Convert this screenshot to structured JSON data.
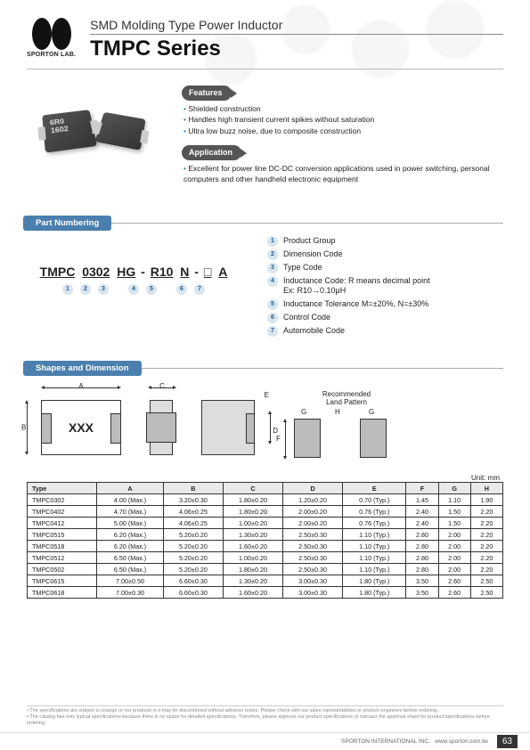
{
  "brand": "SPORTON LAB.",
  "header": {
    "sub": "SMD Molding Type Power Inductor",
    "title": "TMPC Series"
  },
  "product_marking": "6R0\\A1602",
  "features": {
    "label": "Features",
    "items": [
      "Shielded construction",
      "Handles high transient current spikes without saturation",
      "Ultra low buzz noise, due to composite construction"
    ]
  },
  "application": {
    "label": "Application",
    "items": [
      "Excellent for power line DC-DC conversion applications used in power switching, personal computers and other handheld electronic equipment"
    ]
  },
  "part_numbering": {
    "label": "Part Numbering",
    "parts": [
      "TMPC",
      "0302",
      "HG",
      "-",
      "R10",
      "N",
      "-",
      "□",
      "A"
    ],
    "legend": [
      {
        "n": "1",
        "t": "Product Group"
      },
      {
        "n": "2",
        "t": "Dimension Code"
      },
      {
        "n": "3",
        "t": "Type Code"
      },
      {
        "n": "4",
        "t": "Inductance Code: R means decimal point\n        Ex: R10→0.10μH"
      },
      {
        "n": "5",
        "t": "Inductance Tolerance M=±20%, N=±30%"
      },
      {
        "n": "6",
        "t": "Control Code"
      },
      {
        "n": "7",
        "t": "Automobile Code"
      }
    ]
  },
  "shapes": {
    "label": "Shapes and Dimension",
    "marking": "XXX",
    "land_pattern": "Recommended\nLand Pattern",
    "unit": "Unit: mm",
    "headers": [
      "Type",
      "A",
      "B",
      "C",
      "D",
      "E",
      "F",
      "G",
      "H"
    ],
    "rows": [
      [
        "TMPC0302",
        "4.00 (Max.)",
        "3.20±0.30",
        "1.80±0.20",
        "1.20±0.20",
        "0.70 (Typ.)",
        "1.45",
        "1.10",
        "1.90"
      ],
      [
        "TMPC0402",
        "4.70 (Max.)",
        "4.06±0.25",
        "1.80±0.20",
        "2.00±0.20",
        "0.76 (Typ.)",
        "2.40",
        "1.50",
        "2.20"
      ],
      [
        "TMPC0412",
        "5.00 (Max.)",
        "4.06±0.25",
        "1.00±0.20",
        "2.00±0.20",
        "0.76 (Typ.)",
        "2.40",
        "1.50",
        "2.20"
      ],
      [
        "TMPC0515",
        "6.20 (Max.)",
        "5.20±0.20",
        "1.30±0.20",
        "2.50±0.30",
        "1.10 (Typ.)",
        "2.80",
        "2.00",
        "2.20"
      ],
      [
        "TMPC0518",
        "6.20 (Max.)",
        "5.20±0.20",
        "1.60±0.20",
        "2.50±0.30",
        "1.10 (Typ.)",
        "2.80",
        "2.00",
        "2.20"
      ],
      [
        "TMPC0512",
        "6.50 (Max.)",
        "5.20±0.20",
        "1.00±0.20",
        "2.50±0.30",
        "1.10 (Typ.)",
        "2.80",
        "2.00",
        "2.20"
      ],
      [
        "TMPC0502",
        "6.50 (Max.)",
        "5.20±0.20",
        "1.80±0.20",
        "2.50±0.30",
        "1.10 (Typ.)",
        "2.80",
        "2.00",
        "2.20"
      ],
      [
        "TMPC0615",
        "7.00±0.50",
        "6.60±0.30",
        "1.30±0.20",
        "3.00±0.30",
        "1.80 (Typ.)",
        "3.50",
        "2.60",
        "2.50"
      ],
      [
        "TMPC0618",
        "7.00±0.30",
        "6.60±0.30",
        "1.60±0.20",
        "3.00±0.30",
        "1.80 (Typ.)",
        "3.50",
        "2.60",
        "2.50"
      ]
    ]
  },
  "footer": {
    "note1": "The specifications are subject to change or our products in it may be discontinued without advance notice. Please check with our sales representatives or product engineers before ordering.",
    "note2": "The catalog has only typical specifications because there is no space for detailed specifications. Therefore, please approve our product specifications or transact the approval sheet for product specifications before ordering.",
    "company": "SPORTON INTERNATIONAL INC.",
    "url": "www.sporton.com.tw",
    "page": "63"
  }
}
